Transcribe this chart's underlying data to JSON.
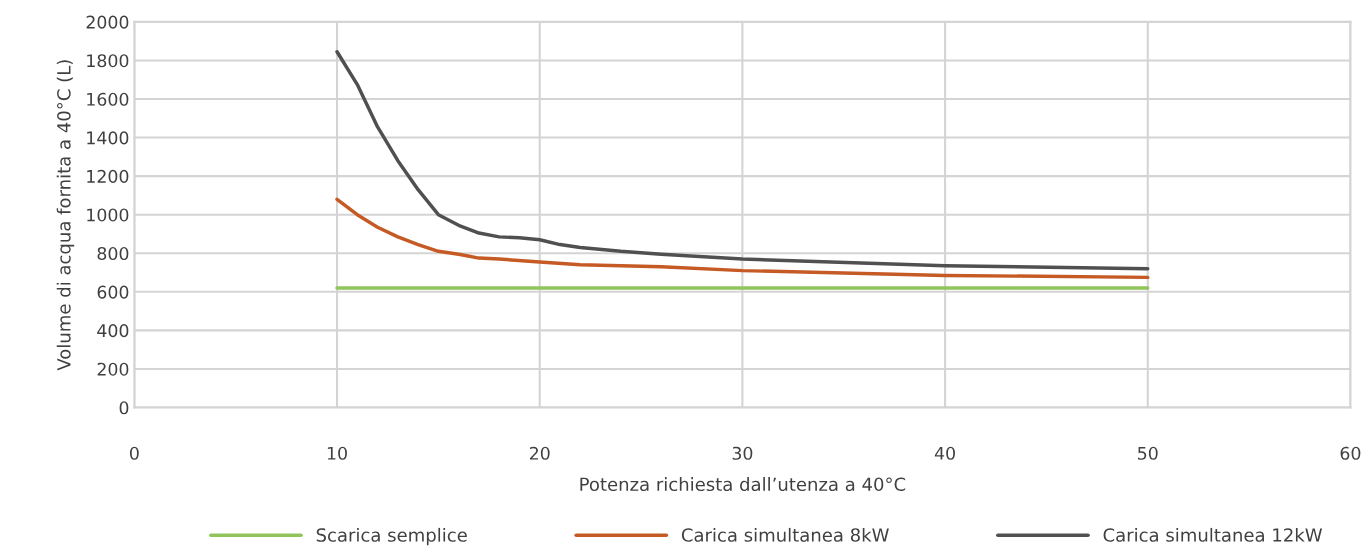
{
  "chart_data": {
    "type": "line",
    "xlabel": "Potenza richiesta dall’utenza a 40°C",
    "ylabel": "Volume di acqua fornita a 40°C (L)",
    "xlim": [
      0,
      60
    ],
    "xticks": [
      0,
      10,
      20,
      30,
      40,
      50,
      60
    ],
    "ylim": [
      0,
      2000
    ],
    "yticks": [
      0,
      200,
      400,
      600,
      800,
      1000,
      1200,
      1400,
      1600,
      1800,
      2000
    ],
    "grid": true,
    "legend": "bottom",
    "marker": "none",
    "line_style": "solid",
    "series": [
      {
        "name": "Scarica semplice",
        "color": "#92c45c",
        "x": [
          10,
          50
        ],
        "values": [
          620,
          620
        ]
      },
      {
        "name": "Carica simultanea 8kW",
        "color": "#c55a24",
        "x": [
          10,
          11,
          12,
          13,
          14,
          15,
          16,
          17,
          18,
          20,
          22,
          24,
          26,
          30,
          40,
          50
        ],
        "values": [
          1080,
          1000,
          935,
          885,
          845,
          810,
          795,
          775,
          770,
          755,
          740,
          735,
          730,
          710,
          685,
          675
        ]
      },
      {
        "name": "Carica simultanea 12kW",
        "color": "#505050",
        "x": [
          10,
          11,
          12,
          13,
          14,
          15,
          16,
          17,
          18,
          19,
          20,
          21,
          22,
          24,
          26,
          30,
          40,
          50
        ],
        "values": [
          1845,
          1675,
          1455,
          1280,
          1130,
          1000,
          945,
          905,
          885,
          880,
          870,
          845,
          830,
          810,
          795,
          770,
          735,
          720
        ]
      }
    ]
  }
}
